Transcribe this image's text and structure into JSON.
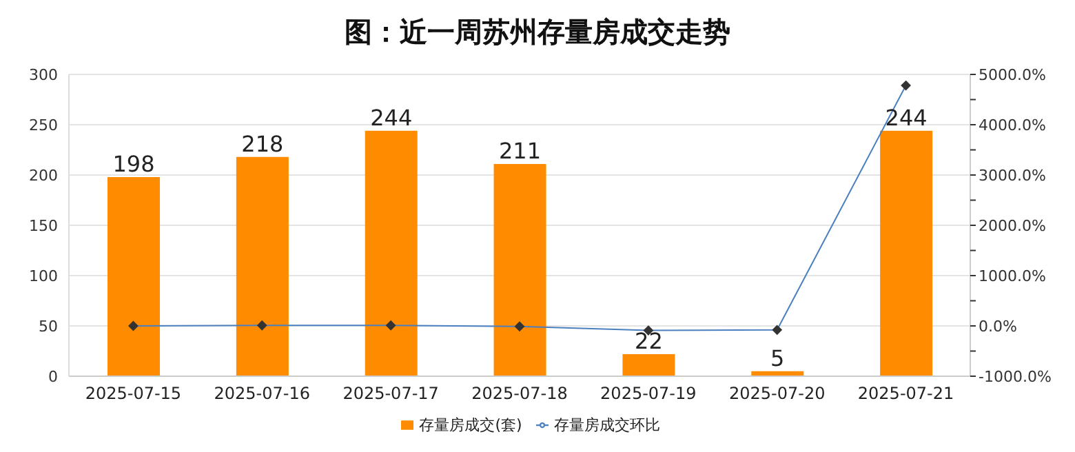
{
  "chart_data": {
    "type": "bar",
    "title": "图：近一周苏州存量房成交走势",
    "categories": [
      "2025-07-15",
      "2025-07-16",
      "2025-07-17",
      "2025-07-18",
      "2025-07-19",
      "2025-07-20",
      "2025-07-21"
    ],
    "series": [
      {
        "name": "存量房成交(套)",
        "color": "#ff8c00",
        "values": [
          198,
          218,
          244,
          211,
          22,
          5,
          244
        ],
        "value_labels": [
          "198",
          "218",
          "244",
          "211",
          "22",
          "5",
          "244"
        ]
      },
      {
        "name": "存量房成交环比",
        "type": "line",
        "axis": "y2",
        "color": "#4a7fc0",
        "marker": "diamond",
        "values": [
          0,
          10,
          10,
          -10,
          -90,
          -80,
          4780
        ]
      }
    ],
    "ylim": [
      0,
      300
    ],
    "yticks": [
      0,
      50,
      100,
      150,
      200,
      250,
      300
    ],
    "y2lim": [
      -1000,
      5000
    ],
    "y2ticks": [
      {
        "value": -1000,
        "label": "-1000.0%"
      },
      {
        "value": -500,
        "label": null
      },
      {
        "value": 0,
        "label": "0.0%"
      },
      {
        "value": 500,
        "label": null
      },
      {
        "value": 1000,
        "label": "1000.0%"
      },
      {
        "value": 1500,
        "label": null
      },
      {
        "value": 2000,
        "label": "2000.0%"
      },
      {
        "value": 2500,
        "label": null
      },
      {
        "value": 3000,
        "label": "3000.0%"
      },
      {
        "value": 3500,
        "label": null
      },
      {
        "value": 4000,
        "label": "4000.0%"
      },
      {
        "value": 4500,
        "label": null
      },
      {
        "value": 5000,
        "label": "5000.0%"
      }
    ],
    "grid": "y",
    "legend": "bottom"
  }
}
